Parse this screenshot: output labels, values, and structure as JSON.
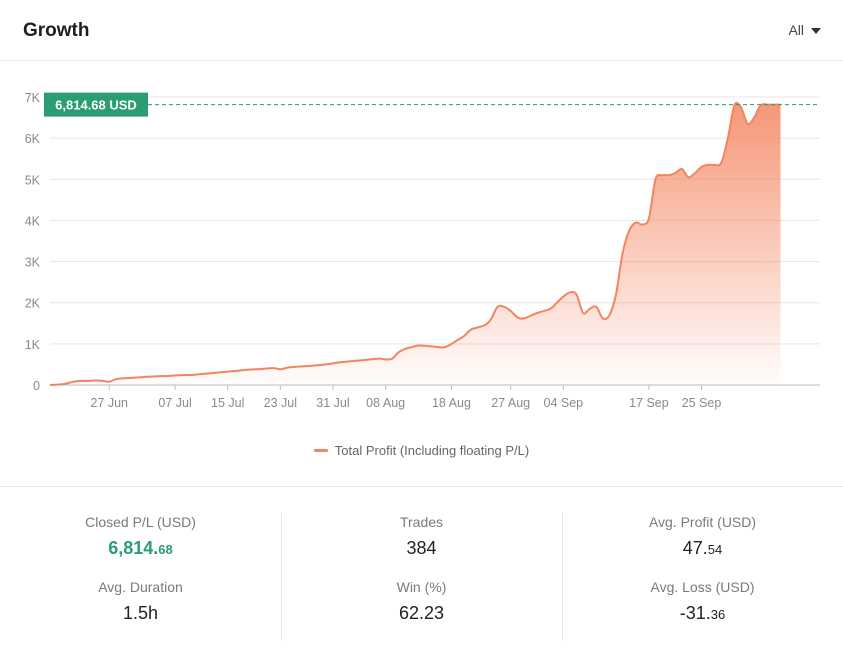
{
  "header": {
    "title": "Growth",
    "filter_label": "All"
  },
  "colors": {
    "series": "#f4845f",
    "accent_green": "#2a9d72",
    "grid": "#e5e5e5"
  },
  "chart_data": {
    "type": "area",
    "title": "",
    "xlabel": "",
    "ylabel": "",
    "ylim": [
      0,
      7000
    ],
    "yticks": [
      0,
      1000,
      2000,
      3000,
      4000,
      5000,
      6000,
      7000
    ],
    "ytick_labels": [
      "0",
      "1K",
      "2K",
      "3K",
      "4K",
      "5K",
      "6K",
      "7K"
    ],
    "xtick_labels": [
      "27 Jun",
      "07 Jul",
      "15 Jul",
      "23 Jul",
      "31 Jul",
      "08 Aug",
      "18 Aug",
      "27 Aug",
      "04 Sep",
      "17 Sep",
      "25 Sep"
    ],
    "xtick_positions": [
      9,
      19,
      27,
      35,
      43,
      51,
      61,
      70,
      78,
      91,
      99
    ],
    "xlim": [
      0,
      117
    ],
    "grid": true,
    "legend": "bottom",
    "current_value_label": "6,814.68 USD",
    "current_value": 6814.68,
    "series": [
      {
        "name": "Total Profit (Including floating P/L)",
        "x": [
          0,
          2,
          4,
          6,
          7,
          8,
          9,
          10,
          11,
          12,
          14,
          16,
          18,
          20,
          22,
          24,
          26,
          28,
          30,
          32,
          34,
          35,
          36,
          38,
          40,
          42,
          44,
          46,
          48,
          50,
          51,
          52,
          53,
          54,
          55,
          56,
          58,
          60,
          62,
          63,
          64,
          66,
          67,
          68,
          69,
          70,
          71,
          72,
          74,
          76,
          77,
          78,
          79,
          80,
          81,
          82,
          83,
          84,
          85,
          86,
          87,
          88,
          89,
          90,
          91,
          92,
          93,
          94,
          95,
          96,
          97,
          98,
          99,
          100,
          101,
          102,
          103,
          104,
          105,
          106,
          107,
          108,
          109,
          110,
          111
        ],
        "y": [
          0,
          20,
          90,
          100,
          110,
          100,
          80,
          140,
          160,
          170,
          190,
          210,
          220,
          240,
          250,
          280,
          310,
          340,
          370,
          390,
          410,
          380,
          420,
          450,
          470,
          500,
          550,
          580,
          610,
          640,
          620,
          640,
          800,
          880,
          920,
          960,
          940,
          920,
          1100,
          1200,
          1350,
          1450,
          1600,
          1900,
          1900,
          1800,
          1650,
          1620,
          1750,
          1850,
          2000,
          2150,
          2250,
          2200,
          1750,
          1850,
          1900,
          1620,
          1700,
          2200,
          3200,
          3750,
          3950,
          3900,
          4050,
          5000,
          5100,
          5100,
          5150,
          5250,
          5050,
          5150,
          5300,
          5350,
          5350,
          5400,
          6000,
          6800,
          6750,
          6350,
          6500,
          6800,
          6814,
          6814,
          6814
        ]
      }
    ]
  },
  "stats": [
    [
      {
        "label": "Closed P/L (USD)",
        "int": "6,814.",
        "dec": "68",
        "green": true
      },
      {
        "label": "Avg. Duration",
        "int": "1.5h",
        "dec": "",
        "green": false
      }
    ],
    [
      {
        "label": "Trades",
        "int": "384",
        "dec": "",
        "green": false
      },
      {
        "label": "Win (%)",
        "int": "62.23",
        "dec": "",
        "green": false
      }
    ],
    [
      {
        "label": "Avg. Profit (USD)",
        "int": "47.",
        "dec": "54",
        "green": false
      },
      {
        "label": "Avg. Loss (USD)",
        "int": "-31.",
        "dec": "36",
        "green": false
      }
    ]
  ]
}
